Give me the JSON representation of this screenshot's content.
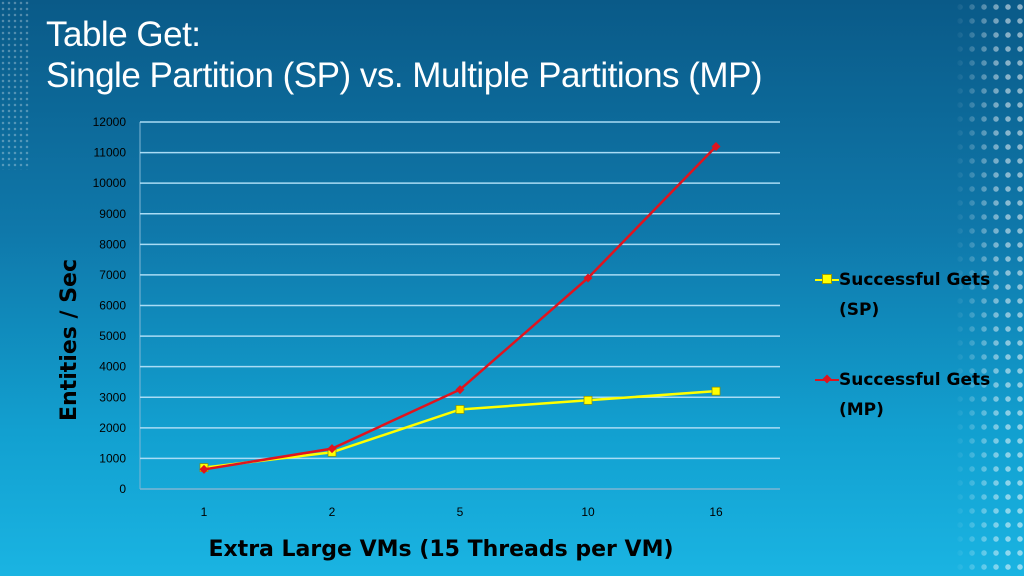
{
  "title_line1": "Table Get:",
  "title_line2": "Single Partition (SP) vs. Multiple Partitions (MP)",
  "chart_data": {
    "type": "line",
    "title": "Table Get: Single Partition (SP) vs. Multiple Partitions (MP)",
    "xlabel": "Extra Large VMs (15 Threads per VM)",
    "ylabel": "Entities / Sec",
    "categories": [
      "1",
      "2",
      "5",
      "10",
      "16"
    ],
    "ylim": [
      0,
      12000
    ],
    "yticks": [
      0,
      1000,
      2000,
      3000,
      4000,
      5000,
      6000,
      7000,
      8000,
      9000,
      10000,
      11000,
      12000
    ],
    "grid": true,
    "legend_position": "right",
    "series": [
      {
        "name": "Successful Gets (SP)",
        "legend_line1": "Successful Gets",
        "legend_line2": "(SP)",
        "color": "#ffff00",
        "marker": "square",
        "values": [
          700,
          1200,
          2600,
          2900,
          3200
        ]
      },
      {
        "name": "Successful Gets (MP)",
        "legend_line1": "Successful Gets",
        "legend_line2": "(MP)",
        "color": "#e0141e",
        "marker": "diamond",
        "values": [
          640,
          1320,
          3250,
          6900,
          11200
        ]
      }
    ]
  }
}
